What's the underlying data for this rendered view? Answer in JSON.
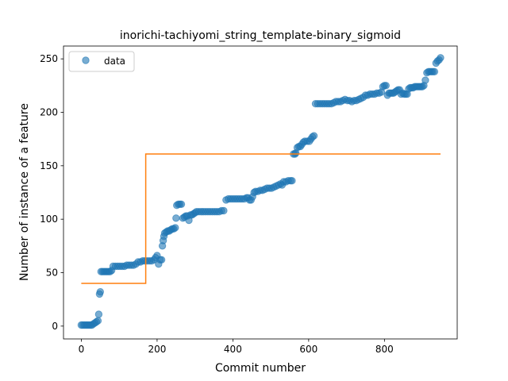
{
  "chart_data": {
    "type": "scatter",
    "title": "inorichi-tachiyomi_string_template-binary_sigmoid",
    "xlabel": "Commit number",
    "ylabel": "Number of instance of a feature",
    "xlim": [
      -47,
      992
    ],
    "ylim": [
      -12,
      262
    ],
    "xticks": [
      0,
      200,
      400,
      600,
      800
    ],
    "yticks": [
      0,
      50,
      100,
      150,
      200,
      250
    ],
    "grid": false,
    "legend": {
      "position": "top-left",
      "entries": [
        "data"
      ]
    },
    "series": [
      {
        "name": "data",
        "kind": "scatter",
        "color": "#1f77b4",
        "points": [
          [
            0,
            1
          ],
          [
            4,
            1
          ],
          [
            8,
            1
          ],
          [
            12,
            1
          ],
          [
            16,
            1
          ],
          [
            20,
            1
          ],
          [
            24,
            1
          ],
          [
            28,
            1
          ],
          [
            32,
            2
          ],
          [
            36,
            3
          ],
          [
            40,
            4
          ],
          [
            44,
            5
          ],
          [
            46,
            11
          ],
          [
            48,
            30
          ],
          [
            50,
            32
          ],
          [
            52,
            51
          ],
          [
            56,
            51
          ],
          [
            60,
            51
          ],
          [
            64,
            51
          ],
          [
            68,
            51
          ],
          [
            72,
            51
          ],
          [
            76,
            51
          ],
          [
            80,
            52
          ],
          [
            84,
            56
          ],
          [
            90,
            56
          ],
          [
            96,
            56
          ],
          [
            102,
            56
          ],
          [
            108,
            56
          ],
          [
            114,
            56
          ],
          [
            120,
            57
          ],
          [
            126,
            57
          ],
          [
            132,
            57
          ],
          [
            138,
            57
          ],
          [
            144,
            58
          ],
          [
            150,
            60
          ],
          [
            156,
            60
          ],
          [
            162,
            61
          ],
          [
            168,
            61
          ],
          [
            174,
            61
          ],
          [
            180,
            61
          ],
          [
            186,
            61
          ],
          [
            192,
            62
          ],
          [
            196,
            64
          ],
          [
            200,
            66
          ],
          [
            204,
            58
          ],
          [
            208,
            62
          ],
          [
            212,
            62
          ],
          [
            214,
            75
          ],
          [
            216,
            80
          ],
          [
            218,
            84
          ],
          [
            220,
            87
          ],
          [
            224,
            88
          ],
          [
            228,
            89
          ],
          [
            232,
            89
          ],
          [
            236,
            90
          ],
          [
            240,
            91
          ],
          [
            244,
            91
          ],
          [
            248,
            92
          ],
          [
            250,
            101
          ],
          [
            252,
            113
          ],
          [
            256,
            114
          ],
          [
            260,
            114
          ],
          [
            264,
            114
          ],
          [
            268,
            101
          ],
          [
            272,
            102
          ],
          [
            276,
            103
          ],
          [
            280,
            103
          ],
          [
            284,
            99
          ],
          [
            288,
            104
          ],
          [
            292,
            104
          ],
          [
            296,
            105
          ],
          [
            300,
            106
          ],
          [
            304,
            107
          ],
          [
            310,
            107
          ],
          [
            316,
            107
          ],
          [
            322,
            107
          ],
          [
            328,
            107
          ],
          [
            334,
            107
          ],
          [
            340,
            107
          ],
          [
            346,
            107
          ],
          [
            352,
            107
          ],
          [
            358,
            107
          ],
          [
            364,
            107
          ],
          [
            370,
            108
          ],
          [
            376,
            108
          ],
          [
            382,
            118
          ],
          [
            388,
            119
          ],
          [
            394,
            119
          ],
          [
            400,
            119
          ],
          [
            406,
            119
          ],
          [
            412,
            119
          ],
          [
            418,
            119
          ],
          [
            424,
            119
          ],
          [
            430,
            119
          ],
          [
            436,
            120
          ],
          [
            440,
            120
          ],
          [
            444,
            118
          ],
          [
            448,
            118
          ],
          [
            452,
            121
          ],
          [
            456,
            125
          ],
          [
            460,
            126
          ],
          [
            466,
            126
          ],
          [
            472,
            127
          ],
          [
            478,
            127
          ],
          [
            484,
            128
          ],
          [
            490,
            129
          ],
          [
            496,
            129
          ],
          [
            502,
            129
          ],
          [
            508,
            130
          ],
          [
            514,
            131
          ],
          [
            520,
            132
          ],
          [
            526,
            133
          ],
          [
            530,
            132
          ],
          [
            534,
            135
          ],
          [
            540,
            135
          ],
          [
            546,
            136
          ],
          [
            552,
            136
          ],
          [
            556,
            136
          ],
          [
            560,
            161
          ],
          [
            564,
            161
          ],
          [
            566,
            162
          ],
          [
            570,
            167
          ],
          [
            574,
            168
          ],
          [
            578,
            168
          ],
          [
            582,
            170
          ],
          [
            586,
            172
          ],
          [
            590,
            173
          ],
          [
            596,
            173
          ],
          [
            602,
            173
          ],
          [
            606,
            175
          ],
          [
            610,
            177
          ],
          [
            614,
            178
          ],
          [
            618,
            208
          ],
          [
            624,
            208
          ],
          [
            630,
            208
          ],
          [
            636,
            208
          ],
          [
            642,
            208
          ],
          [
            648,
            208
          ],
          [
            654,
            208
          ],
          [
            660,
            208
          ],
          [
            666,
            209
          ],
          [
            672,
            210
          ],
          [
            678,
            210
          ],
          [
            684,
            210
          ],
          [
            690,
            211
          ],
          [
            696,
            212
          ],
          [
            702,
            211
          ],
          [
            708,
            211
          ],
          [
            714,
            210
          ],
          [
            720,
            211
          ],
          [
            726,
            211
          ],
          [
            732,
            212
          ],
          [
            738,
            213
          ],
          [
            744,
            214
          ],
          [
            750,
            216
          ],
          [
            756,
            216
          ],
          [
            762,
            217
          ],
          [
            768,
            217
          ],
          [
            774,
            217
          ],
          [
            780,
            218
          ],
          [
            786,
            218
          ],
          [
            792,
            219
          ],
          [
            796,
            224
          ],
          [
            800,
            225
          ],
          [
            804,
            225
          ],
          [
            808,
            216
          ],
          [
            812,
            218
          ],
          [
            816,
            218
          ],
          [
            820,
            218
          ],
          [
            824,
            218
          ],
          [
            828,
            219
          ],
          [
            832,
            220
          ],
          [
            836,
            221
          ],
          [
            840,
            221
          ],
          [
            844,
            217
          ],
          [
            848,
            218
          ],
          [
            852,
            217
          ],
          [
            856,
            217
          ],
          [
            860,
            217
          ],
          [
            864,
            222
          ],
          [
            868,
            223
          ],
          [
            872,
            223
          ],
          [
            876,
            223
          ],
          [
            880,
            224
          ],
          [
            884,
            224
          ],
          [
            888,
            224
          ],
          [
            892,
            224
          ],
          [
            896,
            224
          ],
          [
            900,
            224
          ],
          [
            904,
            225
          ],
          [
            908,
            230
          ],
          [
            912,
            237
          ],
          [
            916,
            238
          ],
          [
            920,
            238
          ],
          [
            924,
            238
          ],
          [
            928,
            238
          ],
          [
            932,
            238
          ],
          [
            936,
            246
          ],
          [
            940,
            248
          ],
          [
            944,
            249
          ],
          [
            948,
            251
          ]
        ]
      },
      {
        "name": "",
        "kind": "line",
        "color": "#ff7f0e",
        "points": [
          [
            0,
            40
          ],
          [
            170,
            40
          ],
          [
            170,
            161
          ],
          [
            948,
            161
          ]
        ]
      }
    ]
  }
}
